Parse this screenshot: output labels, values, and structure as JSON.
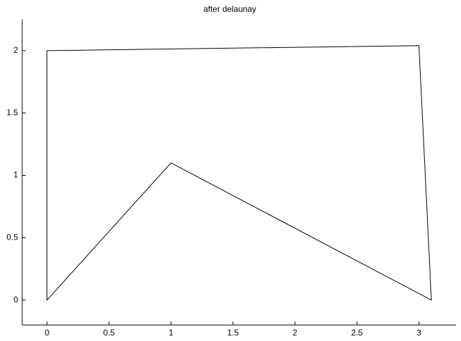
{
  "chart_data": {
    "type": "mesh",
    "title": "after delaunay",
    "x": [
      0,
      0,
      3,
      3.1,
      1
    ],
    "y": [
      0,
      2,
      2.04,
      0,
      1.1
    ],
    "color": "#000000",
    "xlim": [
      -0.2,
      3.3
    ],
    "ylim": [
      -0.2,
      2.25
    ],
    "xticks": [
      0,
      0.5,
      1,
      1.5,
      2,
      2.5,
      3
    ],
    "yticks": [
      0,
      0.5,
      1,
      1.5,
      2
    ]
  }
}
